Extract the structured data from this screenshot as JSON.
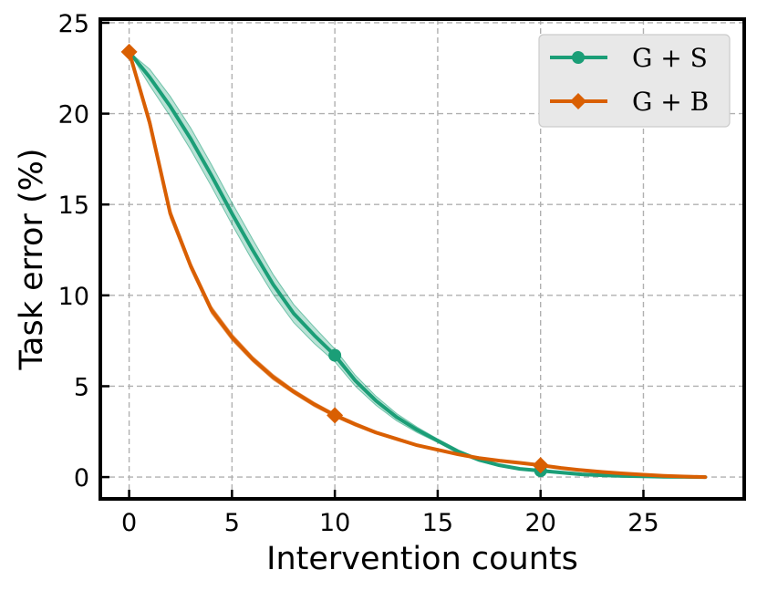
{
  "chart_data": {
    "type": "line",
    "title": "",
    "xlabel": "Intervention counts",
    "ylabel": "Task error (%)",
    "xlim": [
      -1.4,
      29.9
    ],
    "ylim": [
      -1.2,
      25.2
    ],
    "xticks": [
      0,
      5,
      10,
      15,
      20,
      25
    ],
    "yticks": [
      0,
      5,
      10,
      15,
      20,
      25
    ],
    "xtick_labels": [
      "0",
      "5",
      "10",
      "15",
      "20",
      "25"
    ],
    "ytick_labels": [
      "0",
      "5",
      "10",
      "15",
      "20",
      "25"
    ],
    "grid": true,
    "legend_position": "top-right",
    "series": [
      {
        "name": "G + S",
        "color": "#1b9e77",
        "marker": "circle",
        "marker_x": [
          10,
          20
        ],
        "x": [
          0,
          1,
          2,
          3,
          4,
          5,
          6,
          7,
          8,
          9,
          10,
          11,
          12,
          13,
          14,
          15,
          16,
          17,
          18,
          19,
          20,
          21,
          22,
          23,
          24,
          25,
          26,
          27,
          28
        ],
        "values": [
          23.4,
          22.0,
          20.4,
          18.6,
          16.6,
          14.5,
          12.5,
          10.6,
          9.0,
          7.8,
          6.7,
          5.3,
          4.2,
          3.3,
          2.6,
          2.0,
          1.4,
          0.95,
          0.65,
          0.45,
          0.35,
          0.25,
          0.15,
          0.1,
          0.06,
          0.04,
          0.02,
          0.01,
          0.0
        ],
        "band": [
          0.0,
          0.45,
          0.55,
          0.6,
          0.6,
          0.6,
          0.6,
          0.55,
          0.5,
          0.45,
          0.35,
          0.3,
          0.25,
          0.2,
          0.15,
          0.1,
          0.1,
          0.08,
          0.06,
          0.05,
          0.05,
          0.04,
          0.03,
          0.02,
          0.02,
          0.01,
          0.01,
          0.01,
          0.0
        ]
      },
      {
        "name": "G + B",
        "color": "#d95f02",
        "marker": "diamond",
        "marker_x": [
          0,
          10,
          20
        ],
        "x": [
          0,
          1,
          2,
          3,
          4,
          5,
          6,
          7,
          8,
          9,
          10,
          11,
          12,
          13,
          14,
          15,
          16,
          17,
          18,
          19,
          20,
          21,
          22,
          23,
          24,
          25,
          26,
          27,
          28
        ],
        "values": [
          23.4,
          19.5,
          14.5,
          11.6,
          9.2,
          7.7,
          6.5,
          5.5,
          4.7,
          4.0,
          3.4,
          2.9,
          2.45,
          2.1,
          1.75,
          1.5,
          1.25,
          1.05,
          0.9,
          0.78,
          0.65,
          0.5,
          0.38,
          0.28,
          0.2,
          0.13,
          0.07,
          0.03,
          0.0
        ],
        "band": [
          0.0,
          0.3,
          0.25,
          0.2,
          0.2,
          0.18,
          0.15,
          0.15,
          0.12,
          0.12,
          0.1,
          0.1,
          0.08,
          0.08,
          0.06,
          0.06,
          0.05,
          0.05,
          0.04,
          0.04,
          0.04,
          0.03,
          0.03,
          0.02,
          0.02,
          0.01,
          0.01,
          0.01,
          0.0
        ]
      }
    ]
  }
}
